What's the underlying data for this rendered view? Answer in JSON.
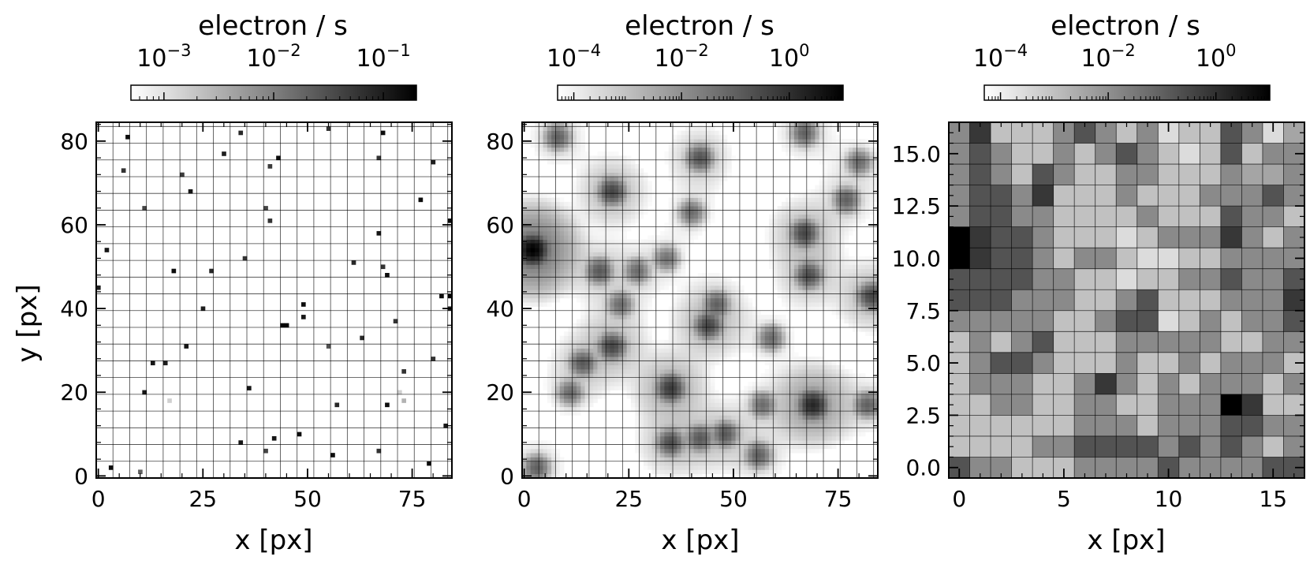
{
  "chart_data": [
    {
      "type": "heatmap",
      "colorbar": {
        "label": "electron / s",
        "scale": "log",
        "min": 0.0005,
        "max": 0.2,
        "major_ticks": [
          {
            "value": 0.001,
            "base": "10",
            "exp": "−3"
          },
          {
            "value": 0.01,
            "base": "10",
            "exp": "−2"
          },
          {
            "value": 0.1,
            "base": "10",
            "exp": "−1"
          }
        ]
      },
      "xlabel": "x [px]",
      "ylabel": "y [px]",
      "grid_n": 85,
      "xlim": [
        -0.5,
        84.5
      ],
      "ylim": [
        -0.5,
        84.5
      ],
      "xticks": [
        "0",
        "25",
        "50",
        "75"
      ],
      "yticks": [
        "0",
        "20",
        "40",
        "60",
        "80"
      ],
      "tick_values_x": [
        0,
        25,
        50,
        75
      ],
      "tick_values_y": [
        0,
        20,
        40,
        60,
        80
      ],
      "grid_lines": "every 4 px",
      "background_value": 0.0005,
      "points": [
        [
          7,
          81,
          0.15
        ],
        [
          34,
          82,
          0.08
        ],
        [
          55,
          83,
          0.06
        ],
        [
          68,
          82,
          0.15
        ],
        [
          6,
          73,
          0.06
        ],
        [
          30,
          77,
          0.1
        ],
        [
          20,
          72,
          0.05
        ],
        [
          43,
          76,
          0.15
        ],
        [
          41,
          74,
          0.05
        ],
        [
          67,
          76,
          0.06
        ],
        [
          80,
          75,
          0.1
        ],
        [
          22,
          68,
          0.12
        ],
        [
          11,
          64,
          0.04
        ],
        [
          40,
          64,
          0.04
        ],
        [
          41,
          61,
          0.06
        ],
        [
          77,
          66,
          0.15
        ],
        [
          67,
          58,
          0.12
        ],
        [
          84,
          61,
          0.15
        ],
        [
          2,
          54,
          0.12
        ],
        [
          35,
          52,
          0.06
        ],
        [
          61,
          51,
          0.08
        ],
        [
          18,
          49,
          0.15
        ],
        [
          27,
          49,
          0.08
        ],
        [
          68,
          50,
          0.06
        ],
        [
          69,
          48,
          0.15
        ],
        [
          0,
          45,
          0.1
        ],
        [
          49,
          41,
          0.15
        ],
        [
          49,
          38,
          0.12
        ],
        [
          45,
          36,
          0.18
        ],
        [
          44,
          36,
          0.18
        ],
        [
          25,
          40,
          0.1
        ],
        [
          71,
          37,
          0.06
        ],
        [
          82,
          43,
          0.15
        ],
        [
          84,
          43,
          0.18
        ],
        [
          84,
          40,
          0.1
        ],
        [
          63,
          33,
          0.08
        ],
        [
          21,
          31,
          0.12
        ],
        [
          55,
          31,
          0.03
        ],
        [
          13,
          27,
          0.12
        ],
        [
          16,
          27,
          0.1
        ],
        [
          73,
          25,
          0.06
        ],
        [
          80,
          28,
          0.06
        ],
        [
          11,
          20,
          0.12
        ],
        [
          36,
          21,
          0.12
        ],
        [
          17,
          18,
          0.0015
        ],
        [
          57,
          17,
          0.08
        ],
        [
          69,
          17,
          0.15
        ],
        [
          72,
          20,
          0.0015
        ],
        [
          73,
          18,
          0.003
        ],
        [
          83,
          12,
          0.12
        ],
        [
          34,
          8,
          0.12
        ],
        [
          42,
          9,
          0.12
        ],
        [
          48,
          10,
          0.15
        ],
        [
          56,
          5,
          0.15
        ],
        [
          67,
          6,
          0.06
        ],
        [
          40,
          6,
          0.04
        ],
        [
          79,
          3,
          0.15
        ],
        [
          3,
          2,
          0.15
        ],
        [
          10,
          1,
          0.02
        ]
      ]
    },
    {
      "type": "heatmap",
      "colorbar": {
        "label": "electron / s",
        "scale": "log",
        "min": 5e-05,
        "max": 10,
        "major_ticks": [
          {
            "value": 0.0001,
            "base": "10",
            "exp": "−4"
          },
          {
            "value": 0.01,
            "base": "10",
            "exp": "−2"
          },
          {
            "value": 1,
            "base": "10",
            "exp": "0"
          }
        ]
      },
      "xlabel": "x [px]",
      "ylabel": "",
      "grid_n": 85,
      "xlim": [
        -0.5,
        84.5
      ],
      "ylim": [
        -0.5,
        84.5
      ],
      "xticks": [
        "0",
        "25",
        "50",
        "75"
      ],
      "yticks": [
        "0",
        "20",
        "40",
        "60",
        "80"
      ],
      "tick_values_x": [
        0,
        25,
        50,
        75
      ],
      "tick_values_y": [
        0,
        20,
        40,
        60,
        80
      ],
      "grid_lines": "every 4 px",
      "background_value": 5e-05,
      "sources": [
        [
          2,
          54,
          10
        ],
        [
          69,
          17,
          2.5
        ],
        [
          35,
          21,
          1.2
        ],
        [
          21,
          31,
          0.8
        ],
        [
          21,
          68,
          0.8
        ],
        [
          67,
          58,
          0.8
        ],
        [
          68,
          48,
          0.6
        ],
        [
          83,
          43,
          0.8
        ],
        [
          44,
          36,
          0.8
        ],
        [
          35,
          8,
          0.6
        ],
        [
          42,
          9,
          0.4
        ],
        [
          48,
          10,
          0.4
        ],
        [
          14,
          27,
          0.4
        ],
        [
          42,
          76,
          0.5
        ],
        [
          77,
          66,
          0.3
        ],
        [
          18,
          49,
          0.4
        ],
        [
          8,
          81,
          0.3
        ],
        [
          67,
          82,
          0.3
        ],
        [
          56,
          5,
          0.3
        ],
        [
          82,
          17,
          0.3
        ],
        [
          57,
          17,
          0.2
        ],
        [
          46,
          41,
          0.3
        ],
        [
          27,
          49,
          0.2
        ],
        [
          59,
          33,
          0.2
        ],
        [
          11,
          20,
          0.2
        ],
        [
          3,
          2,
          0.3
        ],
        [
          80,
          75,
          0.2
        ],
        [
          23,
          41,
          0.2
        ],
        [
          40,
          63,
          0.2
        ],
        [
          34,
          52,
          0.15
        ]
      ]
    },
    {
      "type": "heatmap",
      "colorbar": {
        "label": "electron / s",
        "scale": "log",
        "min": 5e-05,
        "max": 10,
        "major_ticks": [
          {
            "value": 0.0001,
            "base": "10",
            "exp": "−4"
          },
          {
            "value": 0.01,
            "base": "10",
            "exp": "−2"
          },
          {
            "value": 1,
            "base": "10",
            "exp": "0"
          }
        ]
      },
      "xlabel": "x [px]",
      "ylabel": "",
      "grid_n": 17,
      "xlim": [
        -0.5,
        16.5
      ],
      "ylim": [
        -0.5,
        16.5
      ],
      "xticks": [
        "0",
        "5",
        "10",
        "15"
      ],
      "yticks": [
        "0.0",
        "2.5",
        "5.0",
        "7.5",
        "10.0",
        "12.5",
        "15.0"
      ],
      "tick_values_x": [
        0,
        5,
        10,
        15
      ],
      "tick_values_y": [
        0,
        2.5,
        5,
        7.5,
        10,
        12.5,
        15
      ],
      "grid_lines": "every 1 px",
      "value_scale_note": "cell shade level 0 (white) to 9 (black), top row first",
      "levels": [
        [
          4,
          7,
          2,
          2,
          2,
          4,
          6,
          4,
          2,
          4,
          1,
          2,
          2,
          6,
          4,
          1,
          3
        ],
        [
          4,
          6,
          4,
          2,
          2,
          4,
          2,
          4,
          6,
          4,
          2,
          1,
          2,
          6,
          2,
          4,
          4
        ],
        [
          4,
          6,
          4,
          2,
          6,
          4,
          2,
          2,
          4,
          4,
          2,
          2,
          2,
          4,
          3,
          3,
          4
        ],
        [
          4,
          6,
          6,
          4,
          7,
          2,
          2,
          2,
          4,
          2,
          2,
          2,
          4,
          4,
          4,
          6,
          4
        ],
        [
          4,
          6,
          6,
          4,
          4,
          2,
          2,
          2,
          2,
          4,
          2,
          2,
          2,
          6,
          4,
          4,
          2
        ],
        [
          9,
          7,
          6,
          6,
          4,
          2,
          2,
          2,
          1,
          2,
          4,
          4,
          4,
          7,
          4,
          2,
          4
        ],
        [
          9,
          7,
          6,
          6,
          4,
          2,
          4,
          4,
          2,
          1,
          1,
          2,
          2,
          4,
          4,
          4,
          4
        ],
        [
          6,
          6,
          6,
          6,
          4,
          4,
          2,
          2,
          1,
          2,
          2,
          4,
          4,
          6,
          4,
          4,
          6
        ],
        [
          6,
          6,
          6,
          4,
          4,
          4,
          2,
          2,
          4,
          6,
          2,
          2,
          2,
          4,
          4,
          4,
          7
        ],
        [
          4,
          4,
          4,
          4,
          4,
          2,
          2,
          4,
          6,
          6,
          1,
          2,
          4,
          2,
          4,
          4,
          6
        ],
        [
          2,
          4,
          2,
          4,
          6,
          2,
          2,
          2,
          4,
          4,
          4,
          4,
          4,
          2,
          2,
          4,
          4
        ],
        [
          2,
          4,
          6,
          6,
          4,
          2,
          2,
          2,
          4,
          2,
          2,
          4,
          2,
          4,
          4,
          4,
          2
        ],
        [
          2,
          4,
          4,
          4,
          2,
          2,
          4,
          7,
          4,
          2,
          4,
          2,
          4,
          4,
          4,
          2,
          4
        ],
        [
          2,
          2,
          4,
          4,
          2,
          2,
          4,
          4,
          2,
          2,
          4,
          4,
          4,
          9,
          7,
          2,
          2
        ],
        [
          2,
          2,
          2,
          2,
          2,
          2,
          4,
          4,
          4,
          2,
          4,
          4,
          4,
          6,
          6,
          4,
          4
        ],
        [
          2,
          2,
          2,
          2,
          4,
          4,
          6,
          6,
          6,
          6,
          4,
          6,
          4,
          6,
          4,
          2,
          4
        ],
        [
          6,
          4,
          4,
          2,
          2,
          2,
          4,
          4,
          4,
          4,
          6,
          4,
          4,
          4,
          4,
          6,
          6
        ]
      ]
    }
  ]
}
